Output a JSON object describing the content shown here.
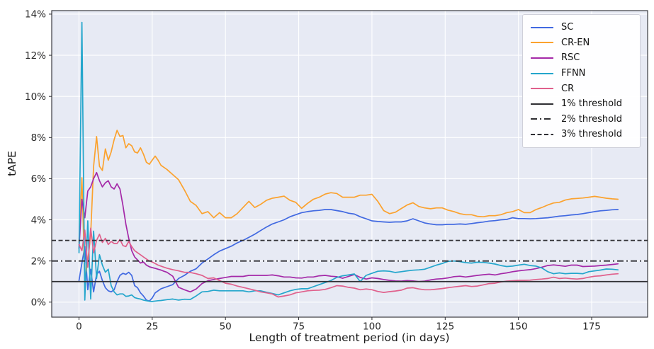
{
  "figure": {
    "colors": {
      "plot_background": "#E7EAF4",
      "grid": "#FFFFFF",
      "spine": "#28282E",
      "tick_text": "#262626",
      "threshold": "#2F2F33",
      "legend_border": "#CFD0DA",
      "legend_background": "#FFFFFF"
    }
  },
  "chart_data": {
    "type": "line",
    "title": "",
    "xlabel": "Length of treatment period (in days)",
    "ylabel": "tAPE",
    "legend_position": "upper right",
    "grid": true,
    "xlim": [
      -9.3,
      194.1
    ],
    "ylim": [
      -0.73,
      14.17
    ],
    "x_ticks": [
      0,
      25,
      50,
      75,
      100,
      125,
      150,
      175
    ],
    "x_tick_labels": [
      "0",
      "25",
      "50",
      "75",
      "100",
      "125",
      "150",
      "175"
    ],
    "y_ticks": [
      0,
      2,
      4,
      6,
      8,
      10,
      12,
      14
    ],
    "y_tick_labels": [
      "0%",
      "2%",
      "4%",
      "6%",
      "8%",
      "10%",
      "12%",
      "14%"
    ],
    "x": [
      0,
      1,
      2,
      3,
      4,
      5,
      6,
      7,
      8,
      9,
      10,
      11,
      12,
      13,
      14,
      15,
      16,
      17,
      18,
      19,
      20,
      21,
      22,
      23,
      24,
      25,
      26,
      27,
      28,
      29,
      30,
      32,
      34,
      36,
      38,
      40,
      42,
      44,
      46,
      48,
      50,
      52,
      54,
      56,
      58,
      60,
      62,
      64,
      66,
      68,
      70,
      72,
      74,
      76,
      78,
      80,
      82,
      84,
      86,
      88,
      90,
      92,
      94,
      96,
      98,
      100,
      102,
      104,
      106,
      108,
      110,
      112,
      114,
      116,
      118,
      120,
      122,
      124,
      126,
      128,
      130,
      132,
      134,
      136,
      138,
      140,
      142,
      144,
      146,
      148,
      150,
      152,
      154,
      156,
      158,
      160,
      162,
      164,
      166,
      168,
      170,
      172,
      174,
      176,
      178,
      180,
      182,
      184
    ],
    "series": [
      {
        "name": "SC",
        "color": "#4169E1",
        "values": [
          1.05,
          1.9,
          2.7,
          0.6,
          1.6,
          0.5,
          1.35,
          1.5,
          1.05,
          0.7,
          0.55,
          0.5,
          0.6,
          1.0,
          1.3,
          1.4,
          1.35,
          1.45,
          1.3,
          0.8,
          0.7,
          0.45,
          0.3,
          0.1,
          0.05,
          0.2,
          0.45,
          0.55,
          0.65,
          0.7,
          0.75,
          0.85,
          1.15,
          1.3,
          1.5,
          1.62,
          1.9,
          2.1,
          2.3,
          2.48,
          2.6,
          2.72,
          2.88,
          3.0,
          3.15,
          3.3,
          3.48,
          3.65,
          3.8,
          3.9,
          4.0,
          4.15,
          4.25,
          4.35,
          4.4,
          4.44,
          4.46,
          4.5,
          4.5,
          4.45,
          4.4,
          4.32,
          4.28,
          4.15,
          4.05,
          3.95,
          3.92,
          3.9,
          3.88,
          3.9,
          3.9,
          3.95,
          4.05,
          3.95,
          3.85,
          3.8,
          3.76,
          3.76,
          3.78,
          3.78,
          3.8,
          3.78,
          3.82,
          3.86,
          3.89,
          3.94,
          3.96,
          4.0,
          4.02,
          4.1,
          4.06,
          4.06,
          4.05,
          4.06,
          4.08,
          4.1,
          4.14,
          4.18,
          4.2,
          4.24,
          4.26,
          4.3,
          4.35,
          4.4,
          4.44,
          4.46,
          4.49,
          4.5
        ]
      },
      {
        "name": "CR-EN",
        "color": "#FBA22E",
        "values": [
          2.9,
          6.05,
          1.1,
          2.0,
          3.3,
          6.6,
          8.05,
          6.6,
          6.4,
          7.45,
          6.9,
          7.3,
          7.9,
          8.35,
          8.05,
          8.1,
          7.5,
          7.7,
          7.6,
          7.3,
          7.25,
          7.5,
          7.2,
          6.8,
          6.7,
          6.9,
          7.1,
          6.9,
          6.65,
          6.55,
          6.45,
          6.2,
          5.95,
          5.45,
          4.9,
          4.7,
          4.3,
          4.4,
          4.1,
          4.35,
          4.1,
          4.1,
          4.3,
          4.6,
          4.9,
          4.6,
          4.75,
          4.95,
          5.05,
          5.1,
          5.15,
          4.95,
          4.85,
          4.56,
          4.8,
          5.0,
          5.1,
          5.25,
          5.32,
          5.28,
          5.1,
          5.1,
          5.1,
          5.2,
          5.2,
          5.24,
          4.9,
          4.45,
          4.3,
          4.37,
          4.55,
          4.72,
          4.83,
          4.65,
          4.58,
          4.54,
          4.58,
          4.58,
          4.47,
          4.4,
          4.3,
          4.25,
          4.25,
          4.17,
          4.15,
          4.2,
          4.2,
          4.25,
          4.35,
          4.4,
          4.5,
          4.35,
          4.35,
          4.5,
          4.6,
          4.72,
          4.82,
          4.85,
          4.96,
          5.02,
          5.04,
          5.06,
          5.1,
          5.14,
          5.1,
          5.05,
          5.02,
          5.0
        ]
      },
      {
        "name": "RSC",
        "color": "#A429A8",
        "values": [
          2.6,
          5.0,
          4.1,
          5.4,
          5.6,
          6.0,
          6.3,
          5.9,
          5.6,
          5.8,
          5.9,
          5.6,
          5.5,
          5.75,
          5.5,
          4.7,
          3.8,
          3.1,
          2.5,
          2.2,
          2.05,
          1.9,
          1.95,
          1.8,
          1.72,
          1.68,
          1.64,
          1.6,
          1.56,
          1.5,
          1.45,
          1.26,
          0.72,
          0.6,
          0.5,
          0.64,
          0.9,
          1.04,
          1.1,
          1.15,
          1.2,
          1.25,
          1.25,
          1.25,
          1.3,
          1.3,
          1.3,
          1.3,
          1.32,
          1.28,
          1.22,
          1.22,
          1.18,
          1.17,
          1.22,
          1.22,
          1.28,
          1.3,
          1.26,
          1.24,
          1.16,
          1.25,
          1.34,
          1.2,
          1.12,
          1.18,
          1.15,
          1.1,
          1.06,
          1.03,
          1.02,
          1.05,
          1.03,
          1.0,
          1.02,
          1.08,
          1.12,
          1.14,
          1.18,
          1.24,
          1.26,
          1.22,
          1.26,
          1.3,
          1.33,
          1.36,
          1.32,
          1.38,
          1.42,
          1.48,
          1.52,
          1.55,
          1.58,
          1.63,
          1.7,
          1.78,
          1.81,
          1.78,
          1.74,
          1.8,
          1.8,
          1.73,
          1.74,
          1.75,
          1.78,
          1.8,
          1.83,
          1.86
        ]
      },
      {
        "name": "FFNN",
        "color": "#24A6CC",
        "values": [
          2.4,
          13.6,
          0.1,
          3.95,
          0.15,
          3.45,
          1.15,
          2.3,
          1.8,
          1.45,
          1.6,
          0.8,
          0.5,
          0.35,
          0.4,
          0.4,
          0.28,
          0.3,
          0.35,
          0.22,
          0.18,
          0.15,
          0.1,
          0.07,
          0.04,
          0.03,
          0.05,
          0.07,
          0.08,
          0.1,
          0.12,
          0.15,
          0.1,
          0.14,
          0.13,
          0.3,
          0.5,
          0.52,
          0.58,
          0.55,
          0.55,
          0.55,
          0.55,
          0.55,
          0.5,
          0.55,
          0.55,
          0.48,
          0.42,
          0.35,
          0.45,
          0.55,
          0.62,
          0.65,
          0.65,
          0.75,
          0.85,
          0.95,
          1.05,
          1.2,
          1.28,
          1.32,
          1.37,
          1.0,
          1.3,
          1.4,
          1.5,
          1.52,
          1.5,
          1.44,
          1.48,
          1.52,
          1.55,
          1.57,
          1.6,
          1.7,
          1.8,
          1.88,
          1.98,
          2.0,
          1.97,
          1.92,
          1.9,
          1.94,
          1.93,
          1.9,
          1.85,
          1.78,
          1.73,
          1.75,
          1.8,
          1.84,
          1.78,
          1.75,
          1.66,
          1.48,
          1.38,
          1.42,
          1.38,
          1.4,
          1.4,
          1.38,
          1.48,
          1.52,
          1.56,
          1.61,
          1.6,
          1.57
        ]
      },
      {
        "name": "CR",
        "color": "#E0608C",
        "values": [
          2.8,
          2.5,
          3.5,
          1.7,
          3.6,
          2.4,
          3.0,
          3.3,
          2.9,
          3.1,
          2.8,
          2.95,
          2.85,
          2.85,
          3.05,
          2.75,
          2.7,
          2.95,
          2.7,
          2.5,
          2.4,
          2.3,
          2.2,
          2.1,
          2.0,
          1.95,
          1.88,
          1.8,
          1.75,
          1.7,
          1.65,
          1.58,
          1.52,
          1.45,
          1.44,
          1.38,
          1.3,
          1.15,
          1.18,
          1.05,
          0.92,
          0.87,
          0.78,
          0.72,
          0.65,
          0.58,
          0.5,
          0.45,
          0.4,
          0.25,
          0.3,
          0.35,
          0.45,
          0.5,
          0.55,
          0.57,
          0.58,
          0.62,
          0.7,
          0.8,
          0.78,
          0.72,
          0.68,
          0.6,
          0.64,
          0.6,
          0.52,
          0.47,
          0.51,
          0.54,
          0.58,
          0.68,
          0.7,
          0.64,
          0.6,
          0.6,
          0.63,
          0.66,
          0.7,
          0.74,
          0.77,
          0.8,
          0.76,
          0.78,
          0.84,
          0.9,
          0.92,
          0.98,
          1.02,
          1.04,
          1.06,
          1.06,
          1.07,
          1.1,
          1.12,
          1.15,
          1.21,
          1.15,
          1.17,
          1.14,
          1.12,
          1.15,
          1.21,
          1.26,
          1.28,
          1.32,
          1.36,
          1.38
        ]
      }
    ],
    "thresholds": [
      {
        "name": "1% threshold",
        "value": 1,
        "style": "solid"
      },
      {
        "name": "2% threshold",
        "value": 2,
        "style": "dashdot"
      },
      {
        "name": "3% threshold",
        "value": 3,
        "style": "dashed"
      }
    ]
  }
}
